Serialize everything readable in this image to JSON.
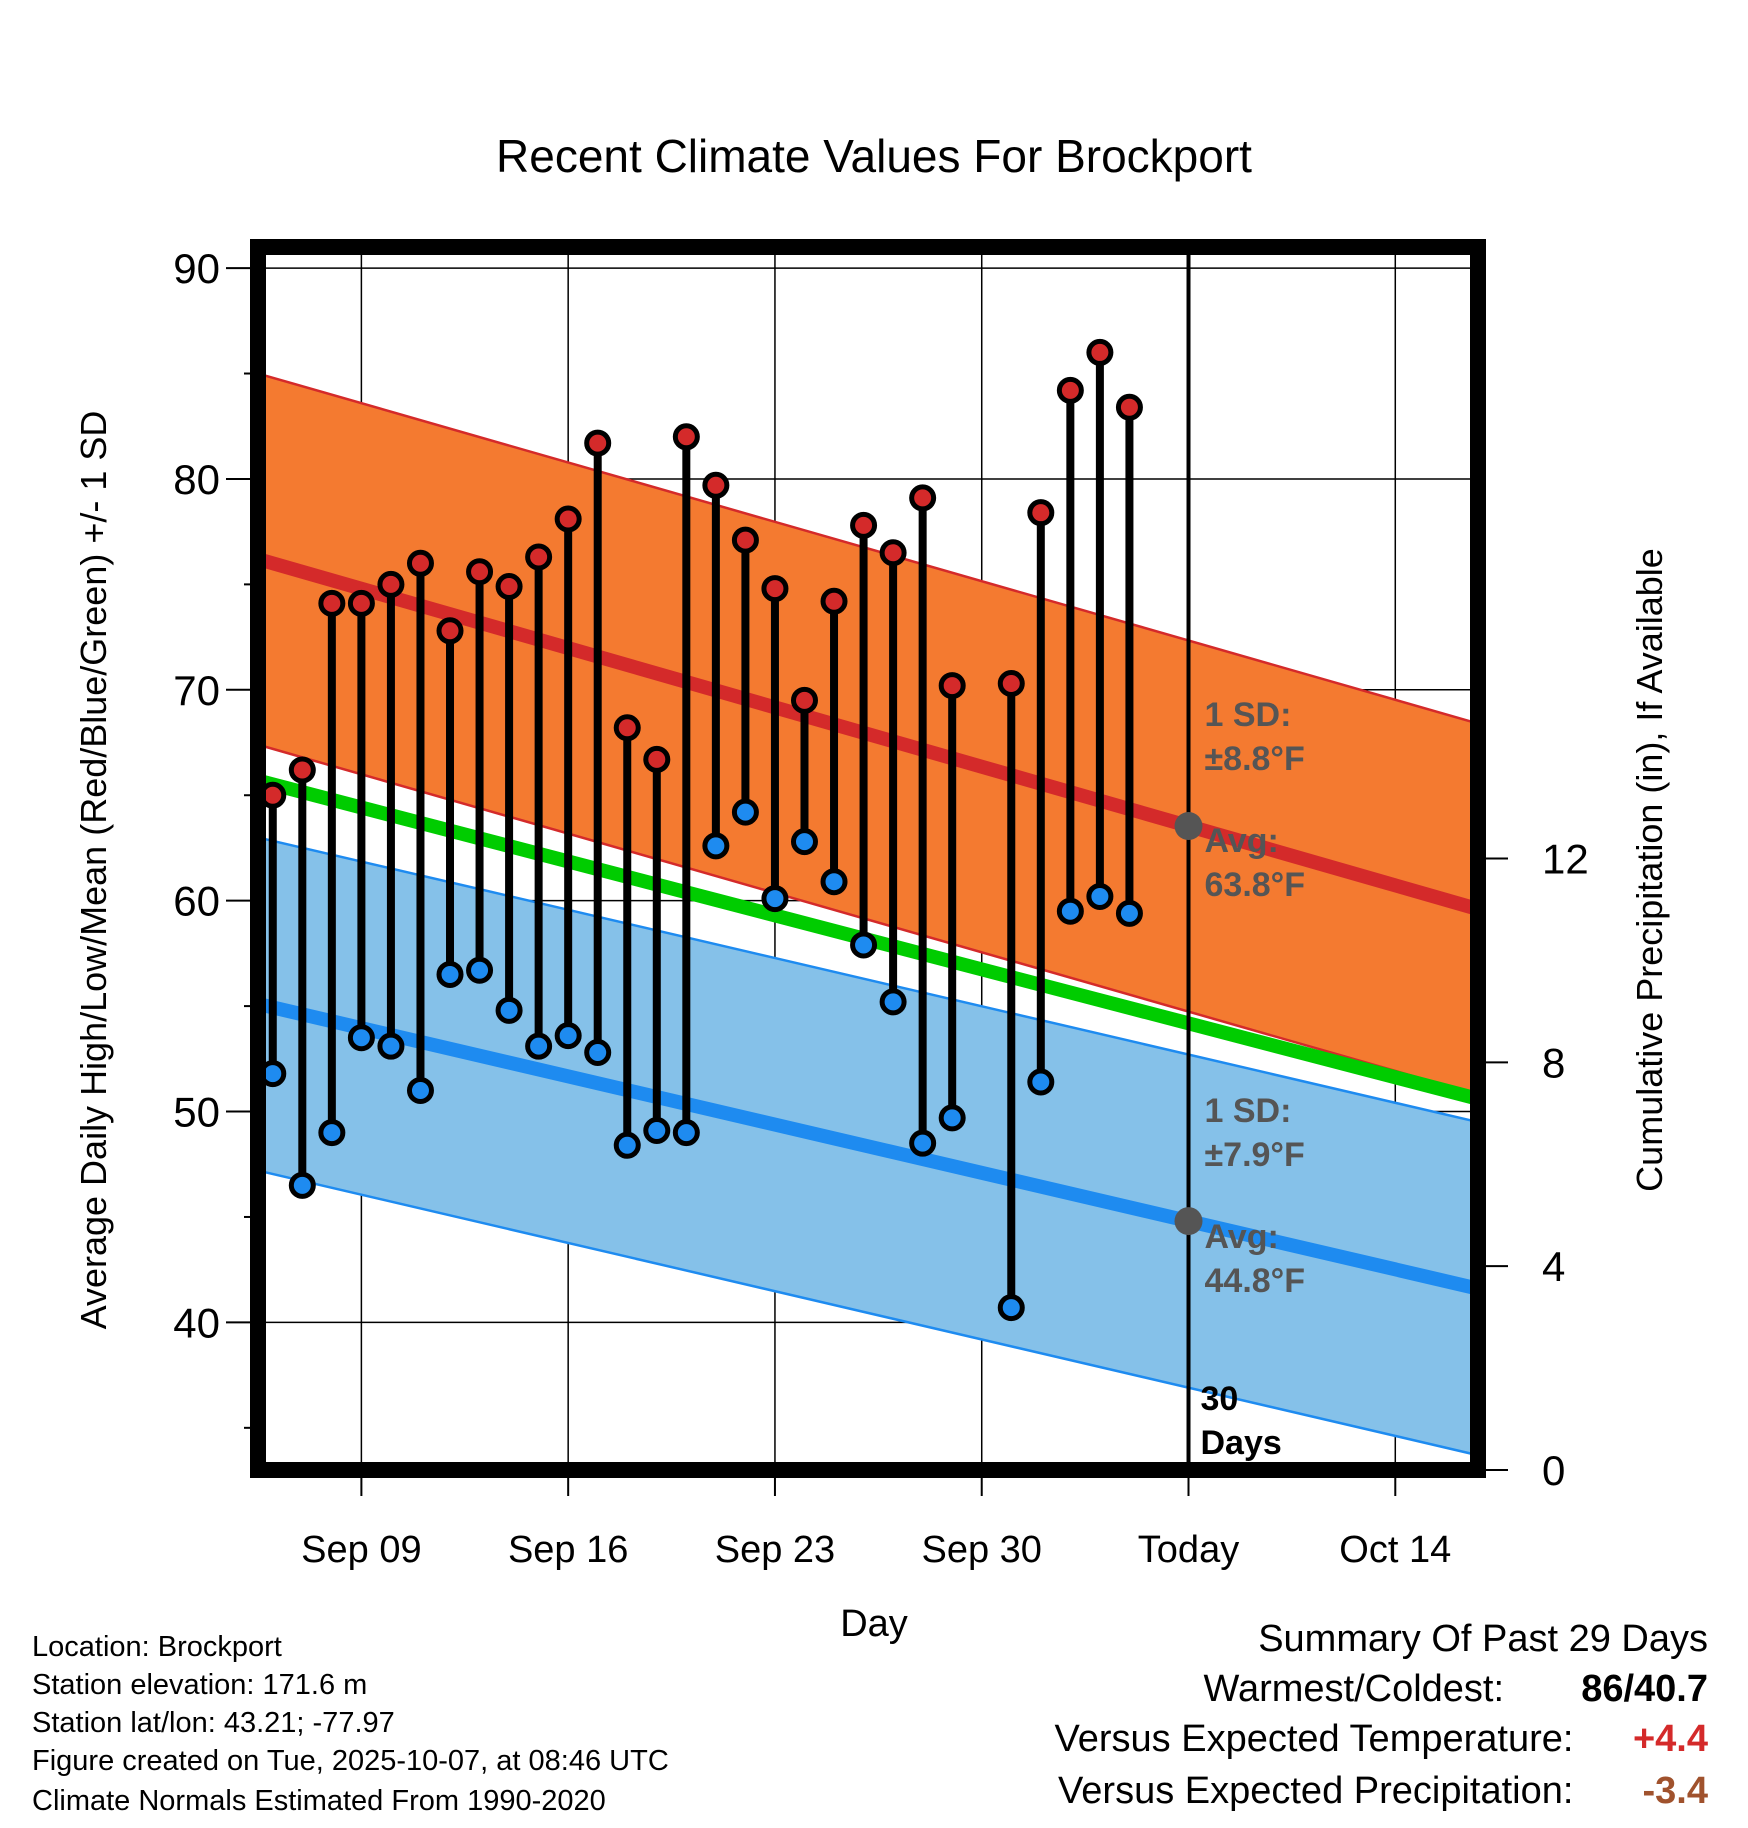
{
  "chart_data": {
    "type": "line",
    "title": "Recent Climate Values For Brockport",
    "xlabel": "Day",
    "ylabel": "Average Daily High/Low/Mean (Red/Blue/Green) +/- 1 SD",
    "y2label": "Cumulative Precipitation (in), If Available",
    "ylim": [
      33,
      91
    ],
    "y2lim": [
      0,
      24
    ],
    "yticks": [
      "40",
      "50",
      "60",
      "70",
      "80",
      "90"
    ],
    "y2ticks": [
      "0",
      "4",
      "8",
      "12"
    ],
    "y2tick_values": [
      0,
      4,
      8,
      12
    ],
    "xlim": [
      5.5,
      46.8
    ],
    "xticks": [
      {
        "day": 9,
        "label": "Sep 09"
      },
      {
        "day": 16,
        "label": "Sep 16"
      },
      {
        "day": 23,
        "label": "Sep 23"
      },
      {
        "day": 30,
        "label": "Sep 30"
      },
      {
        "day": 37,
        "label": "Today"
      },
      {
        "day": 44,
        "label": "Oct 14"
      }
    ],
    "normal_high": {
      "start": 76.2,
      "end": 59.6,
      "sd": 8.8
    },
    "normal_low": {
      "start": 55.1,
      "end": 41.6,
      "sd": 7.9
    },
    "normal_mean": {
      "start": 65.7,
      "end": 50.6
    },
    "days": [
      6,
      7,
      8,
      9,
      10,
      11,
      12,
      13,
      14,
      15,
      16,
      17,
      18,
      19,
      20,
      21,
      22,
      23,
      24,
      25,
      26,
      27,
      28,
      29,
      30,
      31,
      32,
      33,
      34,
      35,
      36
    ],
    "highs": [
      65.0,
      66.2,
      74.1,
      74.1,
      75.0,
      76.0,
      72.8,
      75.6,
      74.9,
      76.3,
      78.1,
      81.7,
      68.2,
      66.7,
      82.0,
      79.7,
      77.1,
      74.8,
      69.5,
      74.2,
      77.8,
      76.5,
      79.1,
      70.2,
      null,
      70.3,
      78.4,
      84.2,
      86.0,
      83.4,
      null
    ],
    "lows": [
      51.8,
      46.5,
      49.0,
      53.5,
      53.1,
      51.0,
      56.5,
      56.7,
      54.8,
      53.1,
      53.6,
      52.8,
      48.4,
      49.1,
      49.0,
      62.6,
      64.2,
      60.1,
      62.8,
      60.9,
      57.9,
      55.2,
      48.5,
      49.7,
      null,
      40.7,
      51.4,
      59.5,
      60.2,
      59.4,
      null
    ],
    "precip_cumulative_end": 0.03,
    "annotations": {
      "high_sd": "1 SD:",
      "high_sd_val": "±8.8°F",
      "high_avg": "Avg:",
      "high_avg_val": "63.8°F",
      "low_sd": "1 SD:",
      "low_sd_val": "±7.9°F",
      "low_avg": "Avg:",
      "low_avg_val": "44.8°F",
      "window_num": "30",
      "window_label": "Days"
    }
  },
  "info": {
    "location": "Location: Brockport",
    "elevation": "Station elevation: 171.6 m",
    "latlon": "Station lat/lon: 43.21; -77.97",
    "created": "Figure created on Tue, 2025-10-07, at 08:46 UTC",
    "normals": "Climate Normals Estimated From 1990-2020"
  },
  "summary": {
    "title": "Summary Of Past 29 Days",
    "warm_cold_label": "Warmest/Coldest:",
    "warmest": "86",
    "sep": "/",
    "coldest": "40.7",
    "temp_label": "Versus Expected Temperature:",
    "temp_value": "+4.4",
    "precip_label": "Versus Expected Precipitation:",
    "precip_value": "-3.4"
  },
  "colors": {
    "high_band": "#F47A30",
    "high_line": "#D42A2A",
    "low_band": "#85C1E9",
    "low_line": "#1E8BF0",
    "mean_line": "#00CC00",
    "high_marker": "#D42A2A",
    "low_marker": "#1E8BF0",
    "temp_value": "#D42A2A",
    "precip_value": "#A0522D",
    "annot": "#555555"
  }
}
